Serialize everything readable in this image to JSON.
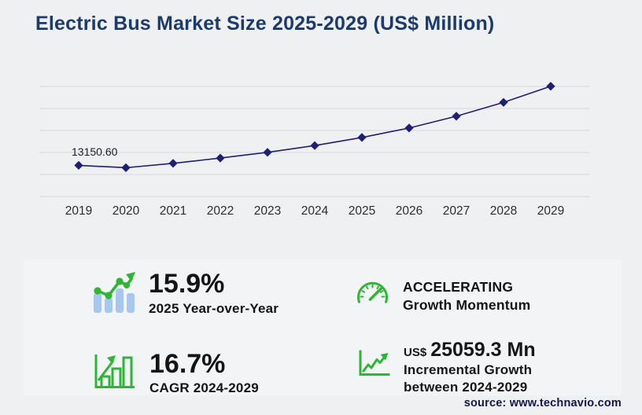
{
  "title": "Electric Bus Market Size 2025-2029 (US$ Million)",
  "source": "source: www.technavio.com",
  "chart_data": {
    "type": "line",
    "title": "Electric Bus Market Size 2025-2029 (US$ Million)",
    "categories": [
      "2019",
      "2020",
      "2021",
      "2022",
      "2023",
      "2024",
      "2025",
      "2026",
      "2027",
      "2028",
      "2029"
    ],
    "values": [
      13150.6,
      12170,
      14020,
      16240,
      18660,
      21520,
      24940,
      28940,
      33910,
      39780,
      46580
    ],
    "first_point_label": "13150.60",
    "xlabel": "",
    "ylabel": "",
    "ylim": [
      0,
      46500
    ],
    "grid": "horizontal",
    "gridline_count": 6,
    "legend": "none",
    "marker": "diamond",
    "line_color": "#1e1e73",
    "gridline_color": "#d8d9db",
    "tick_label_color": "#2d2d2d"
  },
  "stats": [
    {
      "icon": "bar-trend-up-icon",
      "value": "15.9%",
      "label": "2025 Year-over-Year"
    },
    {
      "icon": "gauge-icon",
      "value": "ACCELERATING",
      "label": "Growth Momentum"
    },
    {
      "icon": "growth-chart-icon",
      "value": "16.7%",
      "label": "CAGR 2024-2029"
    },
    {
      "icon": "line-up-axes-icon",
      "prefix": "US$",
      "value": "25059.3 Mn",
      "label_line1": "Incremental Growth",
      "label_line2": "between 2024-2029"
    }
  ],
  "colors": {
    "accent_green": "#2eb535",
    "bar_light_blue": "#a6c7f0",
    "navy_line": "#1e1e73",
    "title_navy": "#1c3a6b",
    "source_navy": "#15154d"
  }
}
